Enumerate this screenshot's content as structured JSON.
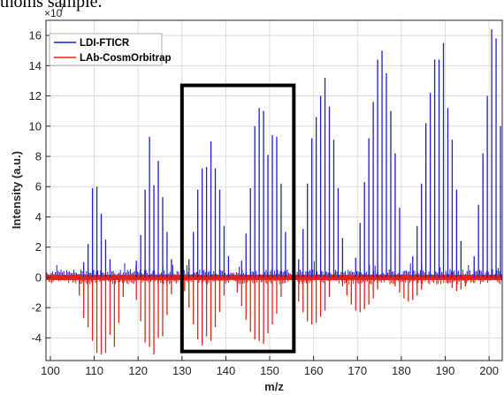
{
  "caption_fragment": "thoms sample.",
  "chart_data": {
    "type": "line",
    "xlabel": "m/z",
    "ylabel": "Intensity (a.u.)",
    "y_scale_exponent": "×10",
    "y_scale_power": "7",
    "xlim": [
      99,
      203
    ],
    "ylim": [
      -5.5,
      17
    ],
    "x_ticks": [
      100,
      110,
      120,
      130,
      140,
      150,
      160,
      170,
      180,
      190,
      200
    ],
    "y_ticks": [
      -4,
      -2,
      0,
      2,
      4,
      6,
      8,
      10,
      12,
      14,
      16
    ],
    "grid": true,
    "legend_position": "top-left",
    "highlight_box": {
      "x_range": [
        130,
        155.5
      ],
      "y_range": [
        -4.9,
        12.7
      ]
    },
    "series": [
      {
        "name": "LDI-FTICR",
        "color": "#1f1fcf",
        "direction": "positive",
        "peaks": [
          [
            107.6,
            1.0
          ],
          [
            108.6,
            2.2
          ],
          [
            109.6,
            5.9
          ],
          [
            110.6,
            6.0
          ],
          [
            111.6,
            4.2
          ],
          [
            112.6,
            2.5
          ],
          [
            113.6,
            1.2
          ],
          [
            119.6,
            1.1
          ],
          [
            120.6,
            2.8
          ],
          [
            121.6,
            5.8
          ],
          [
            122.6,
            9.3
          ],
          [
            123.6,
            6.1
          ],
          [
            124.6,
            7.7
          ],
          [
            125.6,
            5.3
          ],
          [
            126.6,
            3.0
          ],
          [
            127.6,
            1.2
          ],
          [
            131.6,
            1.2
          ],
          [
            132.6,
            3.0
          ],
          [
            133.6,
            5.8
          ],
          [
            134.6,
            7.2
          ],
          [
            135.6,
            7.3
          ],
          [
            136.6,
            9.0
          ],
          [
            137.6,
            7.2
          ],
          [
            138.6,
            5.8
          ],
          [
            139.6,
            3.4
          ],
          [
            140.6,
            1.4
          ],
          [
            143.6,
            1.1
          ],
          [
            144.6,
            2.9
          ],
          [
            145.6,
            5.9
          ],
          [
            146.6,
            10.0
          ],
          [
            147.6,
            11.2
          ],
          [
            148.6,
            11.0
          ],
          [
            149.6,
            8.1
          ],
          [
            150.6,
            9.4
          ],
          [
            151.6,
            9.3
          ],
          [
            152.6,
            6.2
          ],
          [
            153.6,
            3.0
          ],
          [
            156.6,
            1.2
          ],
          [
            157.6,
            3.2
          ],
          [
            158.6,
            6.2
          ],
          [
            159.6,
            9.2
          ],
          [
            160.6,
            10.6
          ],
          [
            161.6,
            12.0
          ],
          [
            162.6,
            13.2
          ],
          [
            163.6,
            11.3
          ],
          [
            164.6,
            9.1
          ],
          [
            165.6,
            5.9
          ],
          [
            166.6,
            2.6
          ],
          [
            169.6,
            1.3
          ],
          [
            170.6,
            3.6
          ],
          [
            171.6,
            6.3
          ],
          [
            172.6,
            9.2
          ],
          [
            173.6,
            11.6
          ],
          [
            174.6,
            14.4
          ],
          [
            175.6,
            15.0
          ],
          [
            176.6,
            13.5
          ],
          [
            177.6,
            11.0
          ],
          [
            178.6,
            8.2
          ],
          [
            179.6,
            4.6
          ],
          [
            182.6,
            1.4
          ],
          [
            183.6,
            3.4
          ],
          [
            184.6,
            6.2
          ],
          [
            185.6,
            10.2
          ],
          [
            186.6,
            12.2
          ],
          [
            187.6,
            14.4
          ],
          [
            188.6,
            14.4
          ],
          [
            189.6,
            15.5
          ],
          [
            190.6,
            11.2
          ],
          [
            191.6,
            9.1
          ],
          [
            192.6,
            5.8
          ],
          [
            193.6,
            2.4
          ],
          [
            196.6,
            1.4
          ],
          [
            197.6,
            4.8
          ],
          [
            198.6,
            8.2
          ],
          [
            199.6,
            12.0
          ],
          [
            200.6,
            16.4
          ],
          [
            201.6,
            15.8
          ],
          [
            202.6,
            10.0
          ]
        ]
      },
      {
        "name": "LAb-CosmOrbitrap",
        "color": "#e0241b",
        "direction": "negative",
        "peaks": [
          [
            106.6,
            -1.2
          ],
          [
            107.6,
            -2.7
          ],
          [
            108.6,
            -3.3
          ],
          [
            109.6,
            -4.2
          ],
          [
            110.6,
            -5.0
          ],
          [
            111.6,
            -5.1
          ],
          [
            112.6,
            -5.0
          ],
          [
            113.6,
            -3.8
          ],
          [
            114.6,
            -4.6
          ],
          [
            115.6,
            -3.0
          ],
          [
            116.6,
            -1.3
          ],
          [
            119.6,
            -1.5
          ],
          [
            120.6,
            -2.9
          ],
          [
            121.6,
            -4.3
          ],
          [
            122.6,
            -4.6
          ],
          [
            123.6,
            -5.1
          ],
          [
            124.6,
            -4.0
          ],
          [
            125.6,
            -3.9
          ],
          [
            126.6,
            -2.5
          ],
          [
            127.6,
            -1.1
          ],
          [
            130.6,
            -0.9
          ],
          [
            131.6,
            -2.0
          ],
          [
            132.6,
            -3.1
          ],
          [
            133.6,
            -4.1
          ],
          [
            134.6,
            -4.5
          ],
          [
            135.6,
            -3.9
          ],
          [
            136.6,
            -4.2
          ],
          [
            137.6,
            -3.3
          ],
          [
            138.6,
            -2.3
          ],
          [
            139.6,
            -1.2
          ],
          [
            142.6,
            -1.0
          ],
          [
            143.6,
            -1.9
          ],
          [
            144.6,
            -2.8
          ],
          [
            145.6,
            -3.6
          ],
          [
            146.6,
            -4.1
          ],
          [
            147.6,
            -4.2
          ],
          [
            148.6,
            -4.4
          ],
          [
            149.6,
            -3.7
          ],
          [
            150.6,
            -3.1
          ],
          [
            151.6,
            -2.4
          ],
          [
            152.6,
            -1.3
          ],
          [
            155.6,
            -0.7
          ],
          [
            156.6,
            -1.6
          ],
          [
            157.6,
            -2.3
          ],
          [
            158.6,
            -2.9
          ],
          [
            159.6,
            -3.1
          ],
          [
            160.6,
            -3.0
          ],
          [
            161.6,
            -2.6
          ],
          [
            162.6,
            -2.2
          ],
          [
            163.6,
            -1.3
          ],
          [
            166.6,
            -0.6
          ],
          [
            167.6,
            -1.2
          ],
          [
            168.6,
            -1.8
          ],
          [
            169.6,
            -2.2
          ],
          [
            170.6,
            -2.3
          ],
          [
            171.6,
            -2.1
          ],
          [
            172.6,
            -1.8
          ],
          [
            173.6,
            -1.4
          ],
          [
            174.6,
            -0.8
          ],
          [
            178.6,
            -0.6
          ],
          [
            179.6,
            -1.0
          ],
          [
            180.6,
            -1.4
          ],
          [
            181.6,
            -1.6
          ],
          [
            182.6,
            -1.5
          ],
          [
            183.6,
            -1.2
          ],
          [
            184.6,
            -0.8
          ],
          [
            190.6,
            -0.4
          ],
          [
            191.6,
            -0.7
          ],
          [
            192.6,
            -0.9
          ],
          [
            193.6,
            -0.8
          ],
          [
            194.6,
            -0.6
          ]
        ]
      }
    ]
  }
}
